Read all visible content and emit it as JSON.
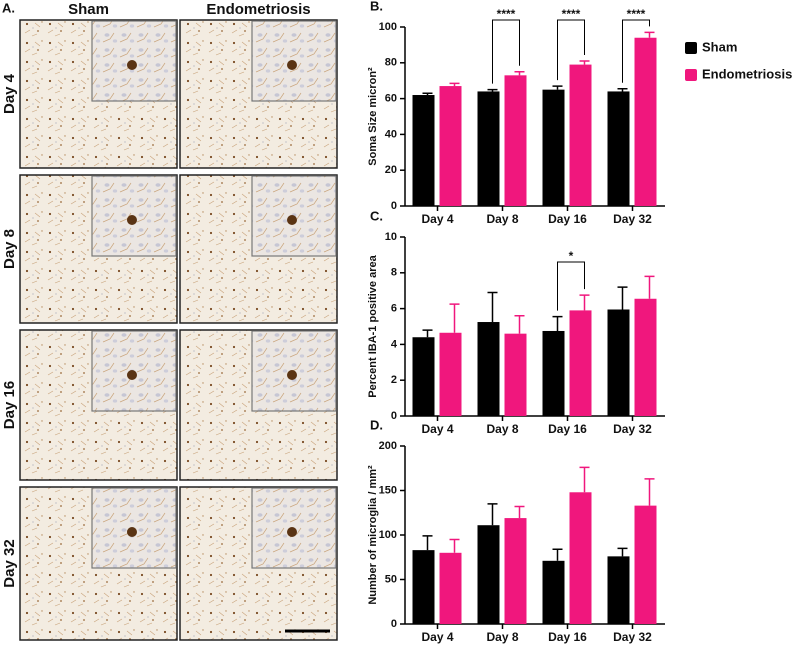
{
  "panel_a": {
    "label": "A.",
    "columns": [
      "Sham",
      "Endometriosis"
    ],
    "rows": [
      "Day 4",
      "Day 8",
      "Day 16",
      "Day 32"
    ]
  },
  "chart_data": [
    {
      "type": "bar",
      "label": "B.",
      "y_label": "Soma Size micron²",
      "categories": [
        "Day 4",
        "Day 8",
        "Day 16",
        "Day 32"
      ],
      "series": [
        {
          "name": "Sham",
          "color": "#000000",
          "values": [
            62,
            64,
            65,
            64
          ],
          "errors": [
            1,
            1,
            2,
            1.5
          ]
        },
        {
          "name": "Endometriosis",
          "color": "#f0177d",
          "values": [
            67,
            73,
            79,
            94
          ],
          "errors": [
            1.5,
            2,
            2,
            3
          ]
        }
      ],
      "ylim": [
        0,
        100
      ],
      "yticks": [
        0,
        20,
        40,
        60,
        80,
        100
      ],
      "legend": true,
      "annotations": [
        {
          "text": "****",
          "category": "Day 8"
        },
        {
          "text": "****",
          "category": "Day 16"
        },
        {
          "text": "****",
          "category": "Day 32"
        }
      ]
    },
    {
      "type": "bar",
      "label": "C.",
      "y_label": "Percent IBA-1 positive area",
      "categories": [
        "Day 4",
        "Day 8",
        "Day 16",
        "Day 32"
      ],
      "series": [
        {
          "color": "#000000",
          "values": [
            4.4,
            5.25,
            4.75,
            5.95
          ],
          "errors": [
            0.4,
            1.65,
            0.8,
            1.25
          ]
        },
        {
          "color": "#f0177d",
          "values": [
            4.65,
            4.6,
            5.9,
            6.55
          ],
          "errors": [
            1.6,
            1.0,
            0.85,
            1.25
          ]
        }
      ],
      "ylim": [
        0,
        10
      ],
      "yticks": [
        0,
        2,
        4,
        6,
        8,
        10
      ],
      "legend": false,
      "annotations": [
        {
          "text": "*",
          "category": "Day 16"
        }
      ]
    },
    {
      "type": "bar",
      "label": "D.",
      "y_label": "Number of microglia / mm²",
      "categories": [
        "Day 4",
        "Day 8",
        "Day 16",
        "Day 32"
      ],
      "series": [
        {
          "color": "#000000",
          "values": [
            83,
            111,
            71,
            76
          ],
          "errors": [
            16,
            24,
            13,
            9
          ]
        },
        {
          "color": "#f0177d",
          "values": [
            80,
            119,
            148,
            133
          ],
          "errors": [
            15,
            13,
            28,
            30
          ]
        }
      ],
      "ylim": [
        0,
        200
      ],
      "yticks": [
        0,
        50,
        100,
        150,
        200
      ],
      "legend": false,
      "annotations": []
    }
  ]
}
